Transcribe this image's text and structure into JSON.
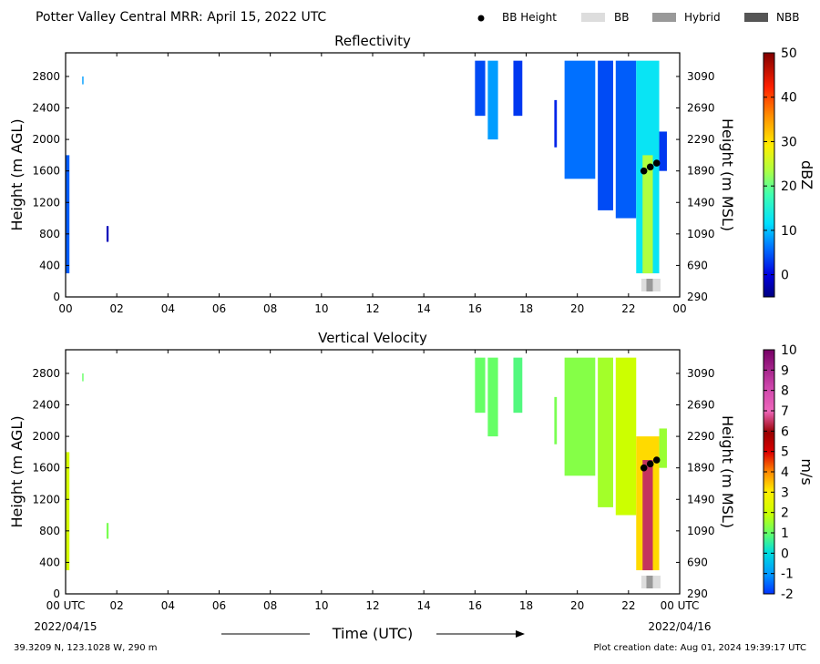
{
  "header": {
    "title": "Potter Valley Central MRR:  April 15, 2022 UTC",
    "legend": [
      {
        "kind": "dot",
        "label": "BB Height",
        "color": "#000000"
      },
      {
        "kind": "swatch",
        "label": "BB",
        "color": "#dddddd"
      },
      {
        "kind": "swatch",
        "label": "Hybrid",
        "color": "#999999"
      },
      {
        "kind": "swatch",
        "label": "NBB",
        "color": "#555555"
      }
    ]
  },
  "shared_x": {
    "tick_labels": [
      "00",
      "02",
      "04",
      "06",
      "08",
      "10",
      "12",
      "14",
      "16",
      "18",
      "20",
      "22",
      "00"
    ],
    "bottom_tick_labels": [
      "00 UTC",
      "02",
      "04",
      "06",
      "08",
      "10",
      "12",
      "14",
      "16",
      "18",
      "20",
      "22",
      "00 UTC"
    ],
    "start_date": "2022/04/15",
    "end_date": "2022/04/16",
    "xlabel": "Time (UTC)"
  },
  "footer": {
    "location": "39.3209 N, 123.1028 W, 290 m",
    "created": "Plot creation date: Aug 01, 2024 19:39:17 UTC"
  },
  "chart_data": [
    {
      "type": "heatmap",
      "title": "Reflectivity",
      "xlabel": "",
      "ylabel": "Height (m AGL)",
      "ylabel_right": "Height (m MSL)",
      "xlim": [
        0,
        24
      ],
      "ylim": [
        0,
        3100
      ],
      "yticks": [
        0,
        400,
        800,
        1200,
        1600,
        2000,
        2400,
        2800
      ],
      "yticks_right": [
        290,
        690,
        1090,
        1490,
        1890,
        2290,
        2690,
        3090
      ],
      "colorbar": {
        "label": "dBZ",
        "range": [
          -5,
          50
        ],
        "ticks": [
          0,
          10,
          20,
          30,
          40,
          50
        ]
      },
      "bb_height": [
        {
          "x": 22.6,
          "y": 1600
        },
        {
          "x": 22.85,
          "y": 1650
        },
        {
          "x": 23.1,
          "y": 1700
        }
      ],
      "bb_type": [
        {
          "x0": 22.5,
          "x1": 22.7,
          "type": "BB"
        },
        {
          "x0": 22.7,
          "x1": 22.95,
          "type": "Hybrid"
        },
        {
          "x0": 22.95,
          "x1": 23.25,
          "type": "BB"
        }
      ],
      "echo_regions": [
        {
          "x0": 0.0,
          "x1": 0.15,
          "y0": 300,
          "y1": 1800,
          "value": 5
        },
        {
          "x0": 0.65,
          "x1": 0.7,
          "y0": 2700,
          "y1": 2800,
          "value": 8
        },
        {
          "x0": 1.6,
          "x1": 1.68,
          "y0": 700,
          "y1": 900,
          "value": -2
        },
        {
          "x0": 16.0,
          "x1": 16.4,
          "y0": 2300,
          "y1": 3000,
          "value": 4
        },
        {
          "x0": 16.5,
          "x1": 16.9,
          "y0": 2000,
          "y1": 3000,
          "value": 8
        },
        {
          "x0": 17.5,
          "x1": 17.85,
          "y0": 2300,
          "y1": 3000,
          "value": 3
        },
        {
          "x0": 19.1,
          "x1": 19.2,
          "y0": 1900,
          "y1": 2500,
          "value": 2
        },
        {
          "x0": 19.5,
          "x1": 20.7,
          "y0": 1500,
          "y1": 3000,
          "value": 6
        },
        {
          "x0": 20.8,
          "x1": 21.4,
          "y0": 1100,
          "y1": 3000,
          "value": 4
        },
        {
          "x0": 21.5,
          "x1": 22.3,
          "y0": 1000,
          "y1": 3000,
          "value": 5
        },
        {
          "x0": 22.3,
          "x1": 23.2,
          "y0": 300,
          "y1": 3000,
          "value": 12
        },
        {
          "x0": 22.55,
          "x1": 22.95,
          "y0": 300,
          "y1": 1800,
          "value": 24
        },
        {
          "x0": 23.2,
          "x1": 23.5,
          "y0": 1600,
          "y1": 2100,
          "value": 3
        }
      ]
    },
    {
      "type": "heatmap",
      "title": "Vertical Velocity",
      "xlabel": "Time (UTC)",
      "ylabel": "Height (m AGL)",
      "ylabel_right": "Height (m MSL)",
      "xlim": [
        0,
        24
      ],
      "ylim": [
        0,
        3100
      ],
      "yticks": [
        0,
        400,
        800,
        1200,
        1600,
        2000,
        2400,
        2800
      ],
      "yticks_right": [
        290,
        690,
        1090,
        1490,
        1890,
        2290,
        2690,
        3090
      ],
      "colorbar": {
        "label": "m/s",
        "range": [
          -2,
          10
        ],
        "ticks": [
          -2,
          -1,
          0,
          1,
          2,
          3,
          4,
          5,
          6,
          7,
          8,
          9,
          10
        ]
      },
      "bb_height": [
        {
          "x": 22.6,
          "y": 1600
        },
        {
          "x": 22.85,
          "y": 1650
        },
        {
          "x": 23.1,
          "y": 1700
        }
      ],
      "bb_type": [
        {
          "x0": 22.5,
          "x1": 22.7,
          "type": "BB"
        },
        {
          "x0": 22.7,
          "x1": 22.95,
          "type": "Hybrid"
        },
        {
          "x0": 22.95,
          "x1": 23.25,
          "type": "BB"
        }
      ],
      "echo_regions": [
        {
          "x0": 0.0,
          "x1": 0.15,
          "y0": 300,
          "y1": 1800,
          "value": 2.2
        },
        {
          "x0": 0.65,
          "x1": 0.7,
          "y0": 2700,
          "y1": 2800,
          "value": 1.0
        },
        {
          "x0": 1.6,
          "x1": 1.68,
          "y0": 700,
          "y1": 900,
          "value": 1.2
        },
        {
          "x0": 16.0,
          "x1": 16.4,
          "y0": 2300,
          "y1": 3000,
          "value": 1.0
        },
        {
          "x0": 16.5,
          "x1": 16.9,
          "y0": 2000,
          "y1": 3000,
          "value": 1.0
        },
        {
          "x0": 17.5,
          "x1": 17.85,
          "y0": 2300,
          "y1": 3000,
          "value": 0.8
        },
        {
          "x0": 19.1,
          "x1": 19.2,
          "y0": 1900,
          "y1": 2500,
          "value": 1.2
        },
        {
          "x0": 19.5,
          "x1": 20.7,
          "y0": 1500,
          "y1": 3000,
          "value": 1.3
        },
        {
          "x0": 20.8,
          "x1": 21.4,
          "y0": 1100,
          "y1": 3000,
          "value": 1.6
        },
        {
          "x0": 21.5,
          "x1": 22.3,
          "y0": 1000,
          "y1": 3000,
          "value": 2.0
        },
        {
          "x0": 22.3,
          "x1": 23.2,
          "y0": 300,
          "y1": 2000,
          "value": 3.2
        },
        {
          "x0": 22.55,
          "x1": 22.95,
          "y0": 300,
          "y1": 1700,
          "value": 6.5
        },
        {
          "x0": 23.2,
          "x1": 23.5,
          "y0": 1600,
          "y1": 2100,
          "value": 1.5
        }
      ]
    }
  ]
}
